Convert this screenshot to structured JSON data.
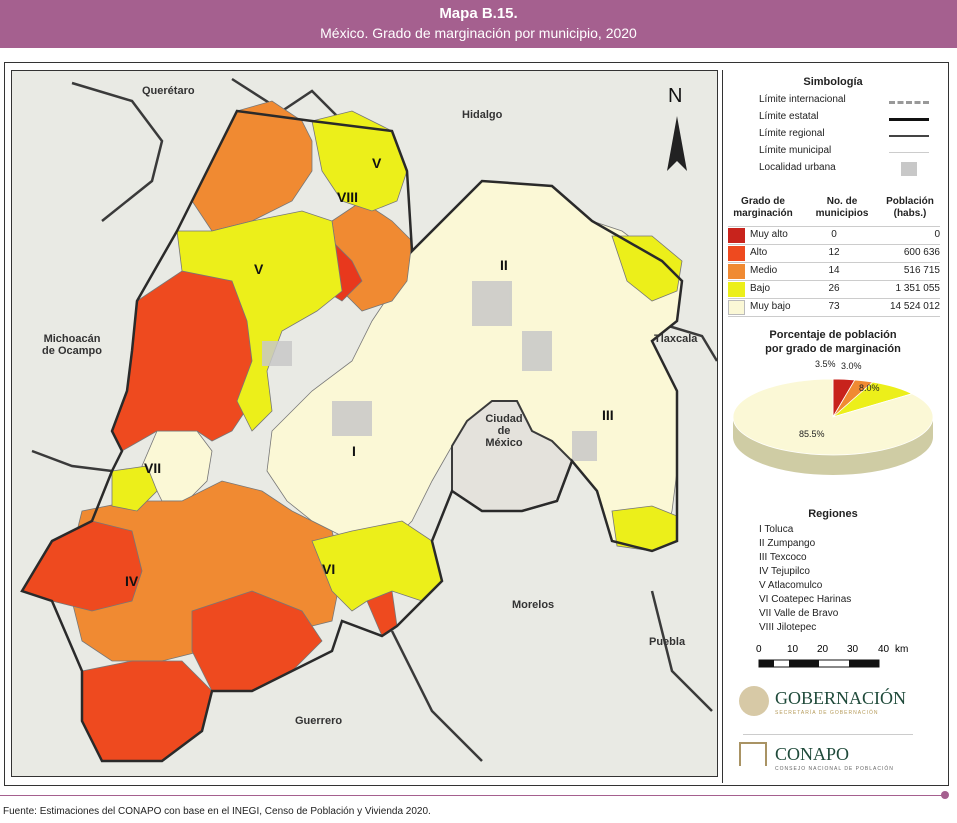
{
  "header": {
    "title": "Mapa B.15.",
    "subtitle": "México. Grado de marginación por municipio, 2020"
  },
  "map_labels": {
    "queretaro": "Querétaro",
    "hidalgo": "Hidalgo",
    "michoacan": "Michoacán\nde Ocampo",
    "tlaxcala": "Tlaxcala",
    "cdmx": "Ciudad\nde\nMéxico",
    "morelos": "Morelos",
    "puebla": "Puebla",
    "guerrero": "Guerrero",
    "north": "N"
  },
  "region_numerals": [
    "I",
    "II",
    "III",
    "IV",
    "V",
    "V",
    "VI",
    "VII",
    "VIII"
  ],
  "legend": {
    "symbology_title": "Simbología",
    "symbols": [
      {
        "label": "Límite internacional",
        "icon": "dashed-gray-line"
      },
      {
        "label": "Límite estatal",
        "icon": "thick-black-line"
      },
      {
        "label": "Límite regional",
        "icon": "dark-line"
      },
      {
        "label": "Límite municipal",
        "icon": "thin-light-line"
      },
      {
        "label": "Localidad urbana",
        "icon": "gray-patch"
      }
    ],
    "table_headers": [
      "Grado de\nmarginación",
      "No. de\nmunicipios",
      "Población\n(habs.)"
    ],
    "rows": [
      {
        "grado": "Muy alto",
        "num": "0",
        "pob": "0",
        "color": "#c8231c"
      },
      {
        "grado": "Alto",
        "num": "12",
        "pob": "600 636",
        "color": "#ee4a1f"
      },
      {
        "grado": "Medio",
        "num": "14",
        "pob": "516 715",
        "color": "#f08a32"
      },
      {
        "grado": "Bajo",
        "num": "26",
        "pob": "1 351 055",
        "color": "#ecef1a"
      },
      {
        "grado": "Muy bajo",
        "num": "73",
        "pob": "14 524 012",
        "color": "#fbf8d6"
      }
    ],
    "pie_title": "Porcentaje de población\npor grado de marginación",
    "pie_labels": [
      "3.5%",
      "3.0%",
      "8.0%",
      "85.5%"
    ],
    "regions_title": "Regiones",
    "regions": [
      "I Toluca",
      "II Zumpango",
      "III Texcoco",
      "IV Tejupilco",
      "V Atlacomulco",
      "VI Coatepec Harinas",
      "VII Valle de Bravo",
      "VIII Jilotepec"
    ],
    "scale_labels": [
      "0",
      "10",
      "20",
      "30",
      "40",
      "km"
    ],
    "logo1": "GOBERNACIÓN",
    "logo1_sub": "SECRETARÍA DE GOBERNACIÓN",
    "logo2": "CONAPO",
    "logo2_sub": "CONSEJO NACIONAL DE POBLACIÓN"
  },
  "chart_data": {
    "type": "pie",
    "title": "Porcentaje de población por grado de marginación",
    "categories": [
      "Alto",
      "Medio",
      "Bajo",
      "Muy bajo"
    ],
    "values": [
      3.5,
      3.0,
      8.0,
      85.5
    ],
    "colors": [
      "#c8231c",
      "#f08a32",
      "#ecef1a",
      "#fbf8d6"
    ]
  },
  "footer": "Fuente: Estimaciones del CONAPO con base en el INEGI, Censo de Población y Vivienda 2020."
}
